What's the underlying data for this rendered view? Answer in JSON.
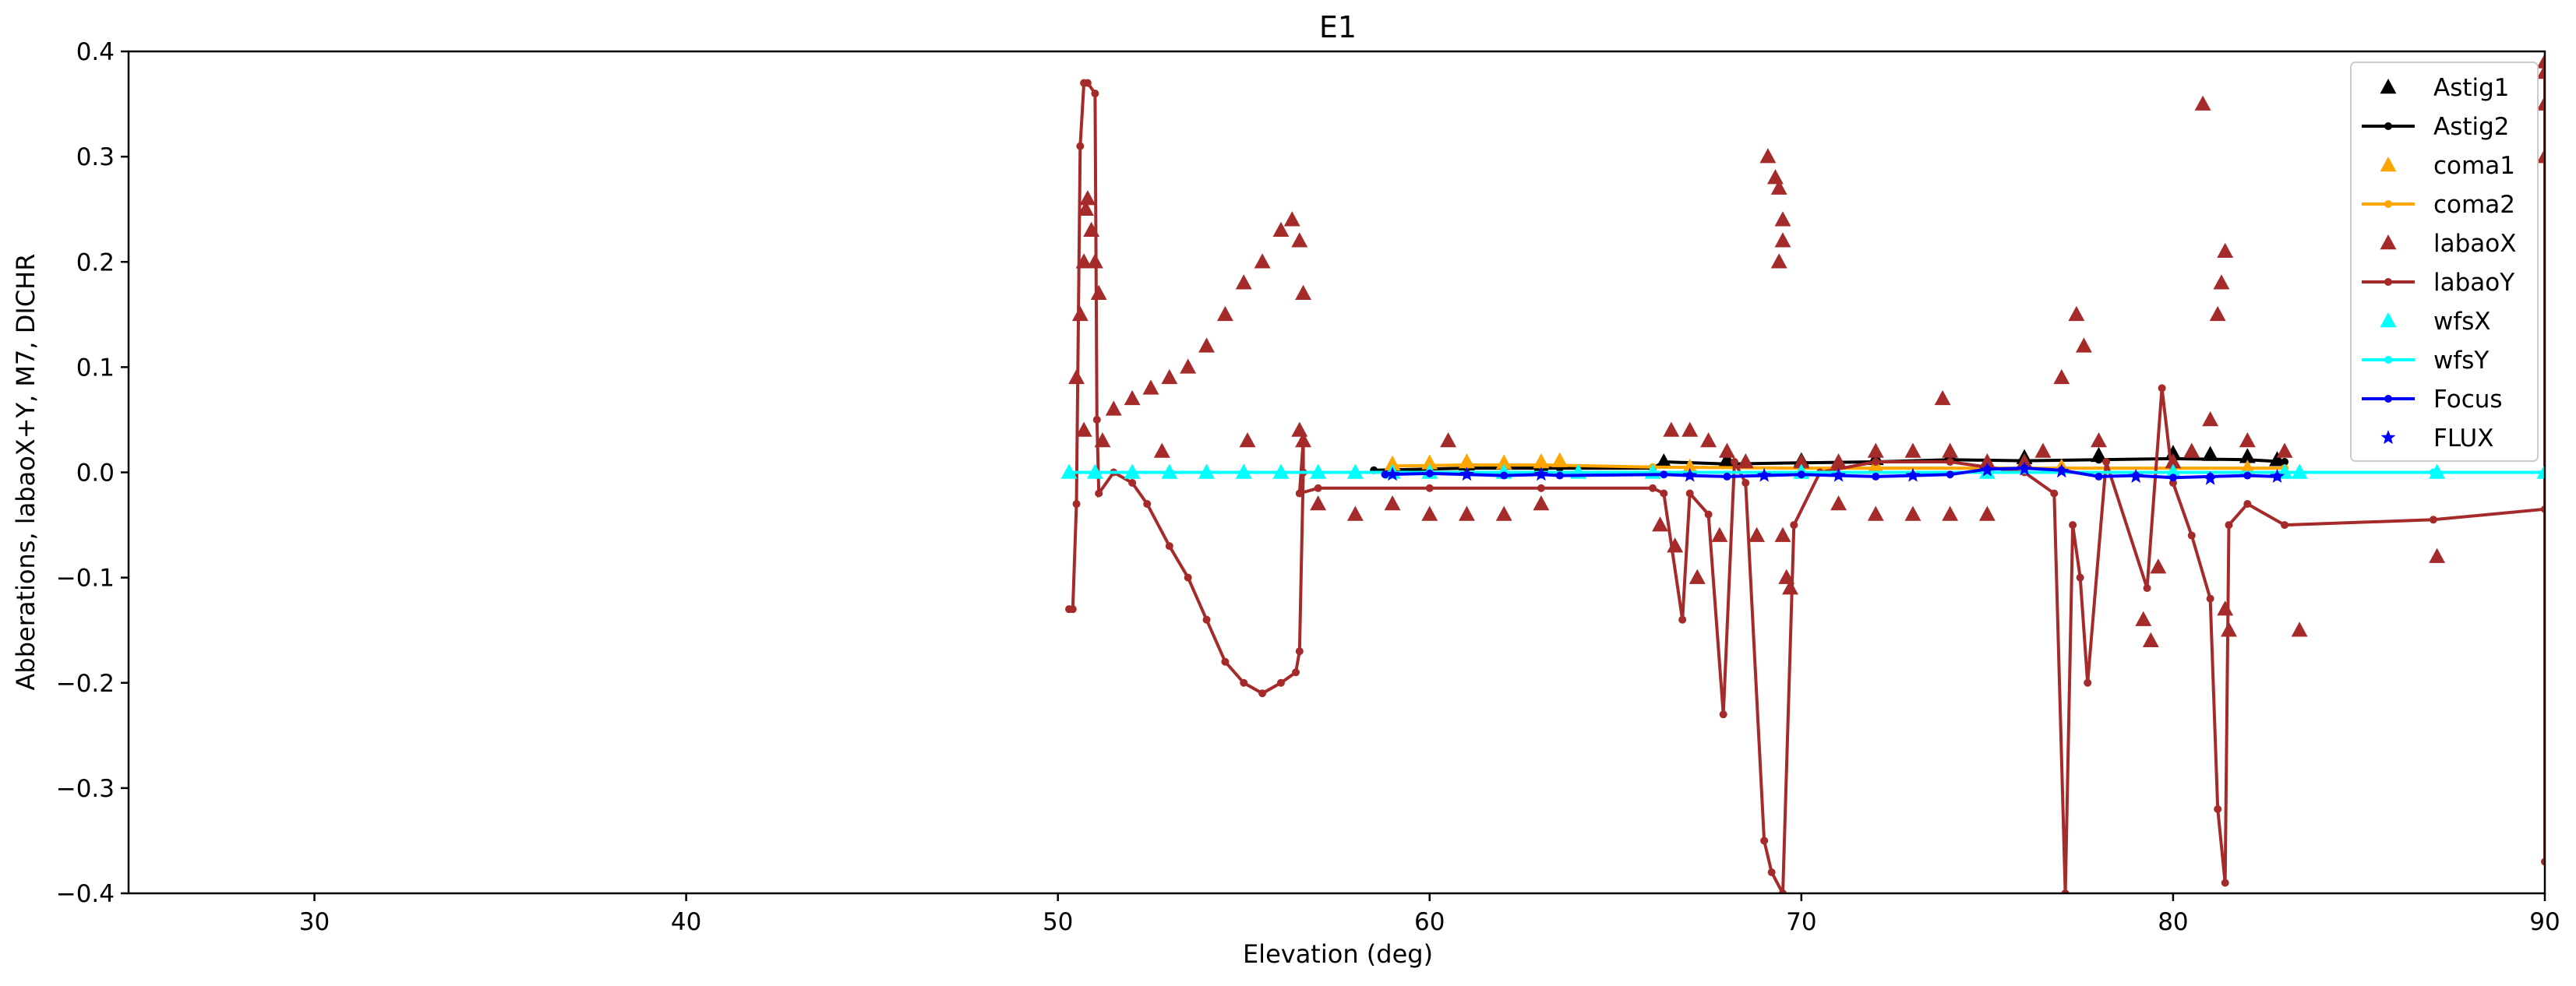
{
  "chart_data": {
    "type": "scatter",
    "title": "E1",
    "xlabel": "Elevation (deg)",
    "ylabel": "Abberations, labaoX+Y, M7, DICHR",
    "xlim": [
      25,
      90
    ],
    "ylim": [
      -0.4,
      0.4
    ],
    "x_ticks": [
      30,
      40,
      50,
      60,
      70,
      80,
      90
    ],
    "y_ticks": [
      -0.4,
      -0.3,
      -0.2,
      -0.1,
      0.0,
      0.1,
      0.2,
      0.3,
      0.4
    ],
    "y_tick_labels": [
      "−0.4",
      "−0.3",
      "−0.2",
      "−0.1",
      "0.0",
      "0.1",
      "0.2",
      "0.3",
      "0.4"
    ],
    "grid": false,
    "legend_position": "top-right",
    "series": [
      {
        "name": "Astig1",
        "color": "#000000",
        "marker": "triangle",
        "line": false,
        "points": [
          [
            59,
            0.005
          ],
          [
            61,
            0.008
          ],
          [
            63,
            0.006
          ],
          [
            66.3,
            0.01
          ],
          [
            68,
            0.012
          ],
          [
            70,
            0.011
          ],
          [
            72,
            0.013
          ],
          [
            74,
            0.015
          ],
          [
            76,
            0.014
          ],
          [
            78,
            0.016
          ],
          [
            80,
            0.018
          ],
          [
            81,
            0.017
          ],
          [
            82,
            0.015
          ],
          [
            82.8,
            0.012
          ]
        ]
      },
      {
        "name": "Astig2",
        "color": "#000000",
        "marker": "dot",
        "line": true,
        "points": [
          [
            58.5,
            0.002
          ],
          [
            61,
            0.004
          ],
          [
            63.5,
            0.004
          ],
          [
            66,
            0.004
          ],
          [
            66.3,
            0.01
          ],
          [
            68,
            0.008
          ],
          [
            70,
            0.009
          ],
          [
            72,
            0.01
          ],
          [
            74,
            0.012
          ],
          [
            76,
            0.011
          ],
          [
            78,
            0.012
          ],
          [
            80,
            0.013
          ],
          [
            82,
            0.012
          ],
          [
            83,
            0.01
          ]
        ]
      },
      {
        "name": "coma1",
        "color": "#ffa500",
        "marker": "triangle",
        "line": false,
        "points": [
          [
            59,
            0.008
          ],
          [
            60,
            0.009
          ],
          [
            61,
            0.01
          ],
          [
            62,
            0.009
          ],
          [
            63,
            0.01
          ],
          [
            63.5,
            0.011
          ],
          [
            67,
            0.005
          ],
          [
            72,
            0.006
          ],
          [
            77,
            0.005
          ],
          [
            82,
            0.004
          ]
        ]
      },
      {
        "name": "coma2",
        "color": "#ffa500",
        "marker": "dot",
        "line": true,
        "points": [
          [
            59,
            0.006
          ],
          [
            61,
            0.007
          ],
          [
            63,
            0.007
          ],
          [
            66,
            0.005
          ],
          [
            70,
            0.004
          ],
          [
            75,
            0.004
          ],
          [
            80,
            0.004
          ],
          [
            83,
            0.004
          ]
        ]
      },
      {
        "name": "labaoX",
        "color": "#a52a2a",
        "marker": "triangle",
        "line": false,
        "points": [
          [
            50.5,
            0.09
          ],
          [
            50.6,
            0.15
          ],
          [
            50.7,
            0.2
          ],
          [
            50.75,
            0.25
          ],
          [
            50.8,
            0.26
          ],
          [
            50.9,
            0.23
          ],
          [
            51,
            0.2
          ],
          [
            51.1,
            0.17
          ],
          [
            50.7,
            0.04
          ],
          [
            51.2,
            0.03
          ],
          [
            51.5,
            0.06
          ],
          [
            52,
            0.07
          ],
          [
            52.5,
            0.08
          ],
          [
            52.8,
            0.02
          ],
          [
            53,
            0.09
          ],
          [
            53.5,
            0.1
          ],
          [
            54,
            0.12
          ],
          [
            54.5,
            0.15
          ],
          [
            55,
            0.18
          ],
          [
            55.5,
            0.2
          ],
          [
            56,
            0.23
          ],
          [
            56.3,
            0.24
          ],
          [
            56.5,
            0.22
          ],
          [
            56.6,
            0.17
          ],
          [
            56.5,
            0.04
          ],
          [
            56.6,
            0.03
          ],
          [
            55.1,
            0.03
          ],
          [
            57,
            -0.03
          ],
          [
            58,
            -0.04
          ],
          [
            59,
            -0.03
          ],
          [
            60,
            -0.04
          ],
          [
            60.5,
            0.03
          ],
          [
            61,
            -0.04
          ],
          [
            62,
            -0.04
          ],
          [
            63,
            -0.03
          ],
          [
            66.5,
            0.04
          ],
          [
            67,
            0.04
          ],
          [
            67.5,
            0.03
          ],
          [
            68,
            0.02
          ],
          [
            68.5,
            0.01
          ],
          [
            66.2,
            -0.05
          ],
          [
            66.6,
            -0.07
          ],
          [
            67.2,
            -0.1
          ],
          [
            67.8,
            -0.06
          ],
          [
            68.8,
            -0.06
          ],
          [
            69.1,
            0.3
          ],
          [
            69.3,
            0.28
          ],
          [
            69.4,
            0.27
          ],
          [
            69.5,
            0.24
          ],
          [
            69.5,
            0.22
          ],
          [
            69.4,
            0.2
          ],
          [
            69.5,
            -0.06
          ],
          [
            69.6,
            -0.1
          ],
          [
            69.7,
            -0.11
          ],
          [
            70,
            0.01
          ],
          [
            71,
            0.01
          ],
          [
            72,
            0.02
          ],
          [
            73,
            0.02
          ],
          [
            73.8,
            0.07
          ],
          [
            74,
            0.02
          ],
          [
            75,
            0.01
          ],
          [
            76,
            0.01
          ],
          [
            76.5,
            0.02
          ],
          [
            71,
            -0.03
          ],
          [
            72,
            -0.04
          ],
          [
            73,
            -0.04
          ],
          [
            74,
            -0.04
          ],
          [
            75,
            -0.04
          ],
          [
            77,
            0.09
          ],
          [
            77.4,
            0.15
          ],
          [
            77.6,
            0.12
          ],
          [
            78,
            0.03
          ],
          [
            79.2,
            -0.14
          ],
          [
            79.4,
            -0.16
          ],
          [
            79.6,
            -0.09
          ],
          [
            80,
            0.01
          ],
          [
            80.5,
            0.02
          ],
          [
            81,
            0.05
          ],
          [
            81.2,
            0.15
          ],
          [
            80.8,
            0.35
          ],
          [
            81.4,
            0.21
          ],
          [
            81.3,
            0.18
          ],
          [
            81.4,
            -0.13
          ],
          [
            81.5,
            -0.15
          ],
          [
            82,
            0.03
          ],
          [
            83,
            0.02
          ],
          [
            83.4,
            -0.15
          ],
          [
            87.1,
            -0.08
          ],
          [
            90,
            0.3
          ],
          [
            90,
            0.35
          ],
          [
            90,
            0.38
          ],
          [
            90,
            0.39
          ]
        ]
      },
      {
        "name": "labaoY",
        "color": "#a52a2a",
        "marker": "dot",
        "line": true,
        "points": [
          [
            50.3,
            -0.13
          ],
          [
            50.4,
            -0.13
          ],
          [
            50.5,
            -0.03
          ],
          [
            50.6,
            0.31
          ],
          [
            50.7,
            0.37
          ],
          [
            50.8,
            0.37
          ],
          [
            51,
            0.36
          ],
          [
            51.05,
            0.05
          ],
          [
            51.1,
            -0.02
          ],
          [
            51.5,
            0.0
          ],
          [
            52,
            -0.01
          ],
          [
            52.4,
            -0.03
          ],
          [
            53,
            -0.07
          ],
          [
            53.5,
            -0.1
          ],
          [
            54,
            -0.14
          ],
          [
            54.5,
            -0.18
          ],
          [
            55,
            -0.2
          ],
          [
            55.5,
            -0.21
          ],
          [
            56,
            -0.2
          ],
          [
            56.4,
            -0.19
          ],
          [
            56.5,
            -0.17
          ],
          [
            56.6,
            0.0
          ],
          [
            56.6,
            0.03
          ],
          [
            56.5,
            -0.02
          ],
          [
            57,
            -0.015
          ],
          [
            60,
            -0.015
          ],
          [
            63,
            -0.015
          ],
          [
            66,
            -0.015
          ],
          [
            66.3,
            -0.02
          ],
          [
            66.8,
            -0.14
          ],
          [
            67,
            -0.02
          ],
          [
            67.5,
            -0.04
          ],
          [
            67.9,
            -0.23
          ],
          [
            68.2,
            0.01
          ],
          [
            68.5,
            -0.01
          ],
          [
            69,
            -0.35
          ],
          [
            69.2,
            -0.38
          ],
          [
            69.5,
            -0.4
          ],
          [
            69.8,
            -0.05
          ],
          [
            70.5,
            0.0
          ],
          [
            72,
            0.01
          ],
          [
            74,
            0.01
          ],
          [
            76,
            0.0
          ],
          [
            76.8,
            -0.02
          ],
          [
            77.1,
            -0.4
          ],
          [
            77.3,
            -0.05
          ],
          [
            77.5,
            -0.1
          ],
          [
            77.7,
            -0.2
          ],
          [
            78.2,
            0.01
          ],
          [
            79.3,
            -0.11
          ],
          [
            79.7,
            0.08
          ],
          [
            80,
            -0.01
          ],
          [
            80.5,
            -0.06
          ],
          [
            81,
            -0.12
          ],
          [
            81.2,
            -0.32
          ],
          [
            81.4,
            -0.39
          ],
          [
            81.5,
            -0.05
          ],
          [
            82,
            -0.03
          ],
          [
            83,
            -0.05
          ],
          [
            87,
            -0.045
          ],
          [
            90,
            -0.035
          ],
          [
            90,
            -0.37
          ],
          [
            90,
            0.39
          ]
        ]
      },
      {
        "name": "wfsX",
        "color": "#00ffff",
        "marker": "triangle",
        "line": false,
        "points": [
          [
            50.3,
            0.0
          ],
          [
            51,
            0.0
          ],
          [
            52,
            0.0
          ],
          [
            53,
            0.0
          ],
          [
            54,
            0.0
          ],
          [
            55,
            0.0
          ],
          [
            56,
            0.0
          ],
          [
            57,
            0.0
          ],
          [
            58,
            0.0
          ],
          [
            59,
            0.0
          ],
          [
            60,
            0.0
          ],
          [
            62,
            0.0
          ],
          [
            64,
            0.0
          ],
          [
            66,
            0.0
          ],
          [
            70,
            0.0
          ],
          [
            75,
            0.0
          ],
          [
            80,
            0.0
          ],
          [
            83,
            0.0
          ],
          [
            83.4,
            0.0
          ],
          [
            87.1,
            0.0
          ],
          [
            90,
            0.0
          ]
        ]
      },
      {
        "name": "wfsY",
        "color": "#00ffff",
        "marker": "dot",
        "line": true,
        "points": [
          [
            50.3,
            0.0
          ],
          [
            52,
            0.0
          ],
          [
            55,
            0.0
          ],
          [
            58,
            0.0
          ],
          [
            62,
            0.0
          ],
          [
            66,
            0.0
          ],
          [
            70,
            0.0
          ],
          [
            75,
            0.0
          ],
          [
            80,
            0.0
          ],
          [
            83,
            0.0
          ],
          [
            87,
            0.0
          ],
          [
            90,
            0.0
          ]
        ]
      },
      {
        "name": "Focus",
        "color": "#0000ff",
        "marker": "dot",
        "line": true,
        "points": [
          [
            58.8,
            -0.002
          ],
          [
            60,
            -0.001
          ],
          [
            61,
            -0.002
          ],
          [
            62,
            -0.003
          ],
          [
            63,
            -0.002
          ],
          [
            63.5,
            -0.003
          ],
          [
            66.3,
            -0.002
          ],
          [
            67,
            -0.003
          ],
          [
            68,
            -0.004
          ],
          [
            69,
            -0.003
          ],
          [
            70,
            -0.002
          ],
          [
            71,
            -0.003
          ],
          [
            72,
            -0.004
          ],
          [
            73,
            -0.003
          ],
          [
            74,
            -0.002
          ],
          [
            75,
            0.003
          ],
          [
            76,
            0.004
          ],
          [
            77,
            0.002
          ],
          [
            78,
            -0.004
          ],
          [
            79,
            -0.003
          ],
          [
            80,
            -0.005
          ],
          [
            81,
            -0.004
          ],
          [
            82,
            -0.003
          ],
          [
            82.8,
            -0.004
          ]
        ]
      },
      {
        "name": "FLUX",
        "color": "#0000ff",
        "marker": "star",
        "line": false,
        "points": [
          [
            59,
            -0.002
          ],
          [
            61,
            -0.002
          ],
          [
            63,
            -0.002
          ],
          [
            67,
            -0.003
          ],
          [
            69,
            -0.003
          ],
          [
            71,
            -0.003
          ],
          [
            73,
            -0.003
          ],
          [
            75,
            0.002
          ],
          [
            76,
            0.003
          ],
          [
            77,
            0.001
          ],
          [
            79,
            -0.004
          ],
          [
            81,
            -0.006
          ],
          [
            82.8,
            -0.004
          ]
        ]
      }
    ]
  }
}
